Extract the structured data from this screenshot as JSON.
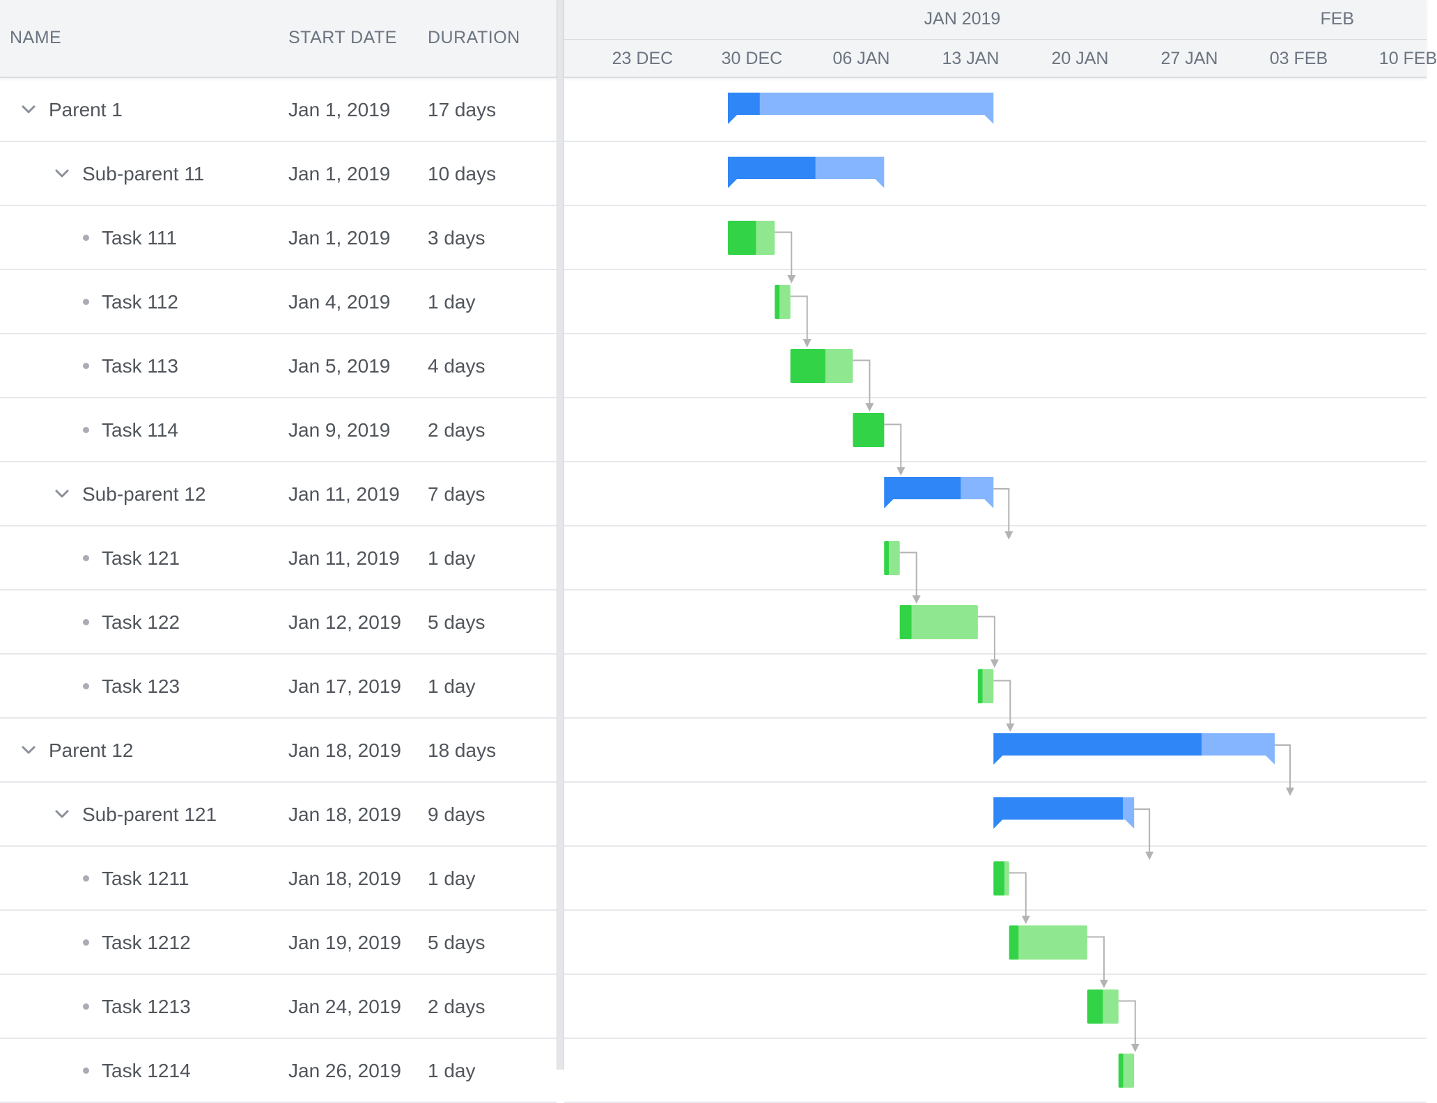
{
  "grid": {
    "columns": {
      "name": "NAME",
      "start": "START DATE",
      "duration": "DURATION"
    },
    "rows": [
      {
        "name": "Parent 1",
        "start": "Jan 1, 2019",
        "duration": "17 days",
        "level": 0,
        "type": "parent",
        "startDay": 1,
        "days": 17,
        "progress": 0.12
      },
      {
        "name": "Sub-parent 11",
        "start": "Jan 1, 2019",
        "duration": "10 days",
        "level": 1,
        "type": "parent",
        "startDay": 1,
        "days": 10,
        "progress": 0.56
      },
      {
        "name": "Task 111",
        "start": "Jan 1, 2019",
        "duration": "3 days",
        "level": 2,
        "type": "task",
        "startDay": 1,
        "days": 3,
        "progress": 0.6
      },
      {
        "name": "Task 112",
        "start": "Jan 4, 2019",
        "duration": "1 day",
        "level": 2,
        "type": "task",
        "startDay": 4,
        "days": 1,
        "progress": 0.3
      },
      {
        "name": "Task 113",
        "start": "Jan 5, 2019",
        "duration": "4 days",
        "level": 2,
        "type": "task",
        "startDay": 5,
        "days": 4,
        "progress": 0.56
      },
      {
        "name": "Task 114",
        "start": "Jan 9, 2019",
        "duration": "2 days",
        "level": 2,
        "type": "task",
        "startDay": 9,
        "days": 2,
        "progress": 1.0
      },
      {
        "name": "Sub-parent 12",
        "start": "Jan 11, 2019",
        "duration": "7 days",
        "level": 1,
        "type": "parent",
        "startDay": 11,
        "days": 7,
        "progress": 0.7
      },
      {
        "name": "Task 121",
        "start": "Jan 11, 2019",
        "duration": "1 day",
        "level": 2,
        "type": "task",
        "startDay": 11,
        "days": 1,
        "progress": 0.3
      },
      {
        "name": "Task 122",
        "start": "Jan 12, 2019",
        "duration": "5 days",
        "level": 2,
        "type": "task",
        "startDay": 12,
        "days": 5,
        "progress": 0.15
      },
      {
        "name": "Task 123",
        "start": "Jan 17, 2019",
        "duration": "1 day",
        "level": 2,
        "type": "task",
        "startDay": 17,
        "days": 1,
        "progress": 0.3
      },
      {
        "name": "Parent 12",
        "start": "Jan 18, 2019",
        "duration": "18 days",
        "level": 0,
        "type": "parent",
        "startDay": 18,
        "days": 18,
        "progress": 0.74
      },
      {
        "name": "Sub-parent 121",
        "start": "Jan 18, 2019",
        "duration": "9 days",
        "level": 1,
        "type": "parent",
        "startDay": 18,
        "days": 9,
        "progress": 0.92
      },
      {
        "name": "Task 1211",
        "start": "Jan 18, 2019",
        "duration": "1 day",
        "level": 2,
        "type": "task",
        "startDay": 18,
        "days": 1,
        "progress": 0.7
      },
      {
        "name": "Task 1212",
        "start": "Jan 19, 2019",
        "duration": "5 days",
        "level": 2,
        "type": "task",
        "startDay": 19,
        "days": 5,
        "progress": 0.12
      },
      {
        "name": "Task 1213",
        "start": "Jan 24, 2019",
        "duration": "2 days",
        "level": 2,
        "type": "task",
        "startDay": 24,
        "days": 2,
        "progress": 0.5
      },
      {
        "name": "Task 1214",
        "start": "Jan 26, 2019",
        "duration": "1 day",
        "level": 2,
        "type": "task",
        "startDay": 26,
        "days": 1,
        "progress": 0.3
      }
    ]
  },
  "timeline": {
    "months": [
      {
        "label": "JAN 2019",
        "centerDay": 16
      },
      {
        "label": "FEB",
        "centerDay": 40
      }
    ],
    "weeks": [
      {
        "label": "23 DEC",
        "day": -8
      },
      {
        "label": "30 DEC",
        "day": -1
      },
      {
        "label": "06 JAN",
        "day": 6
      },
      {
        "label": "13 JAN",
        "day": 13
      },
      {
        "label": "20 JAN",
        "day": 20
      },
      {
        "label": "27 JAN",
        "day": 27
      },
      {
        "label": "03 FEB",
        "day": 34
      },
      {
        "label": "10 FEB",
        "day": 41
      }
    ],
    "dependencies": [
      [
        2,
        3
      ],
      [
        3,
        4
      ],
      [
        4,
        5
      ],
      [
        5,
        6
      ],
      [
        6,
        7
      ],
      [
        7,
        8
      ],
      [
        8,
        9
      ],
      [
        9,
        10
      ],
      [
        10,
        11
      ],
      [
        11,
        12
      ],
      [
        12,
        13
      ],
      [
        13,
        14
      ],
      [
        14,
        15
      ]
    ],
    "colors": {
      "parent_bar": "#86b5ff",
      "parent_progress": "#2f86f6",
      "task_bar": "#8fe88f",
      "task_progress": "#33d348",
      "link": "#b3b3b3"
    }
  }
}
